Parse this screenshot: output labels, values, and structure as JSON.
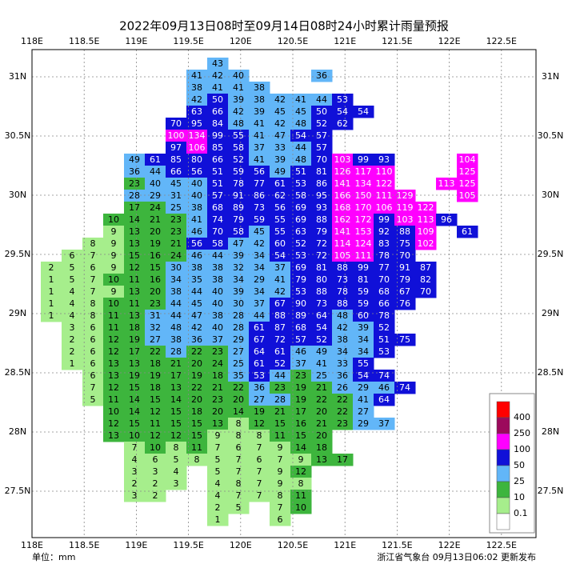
{
  "map": {
    "title": "2022年09月13日08时至09月14日08时24小时累计雨量预报",
    "unit_label": "单位：mm",
    "issuer": "浙江省气象台 09月13日06:02 更新发布",
    "lon_ticks": [
      {
        "value": 118,
        "label": "118E"
      },
      {
        "value": 118.5,
        "label": "118.5E"
      },
      {
        "value": 119,
        "label": "119E"
      },
      {
        "value": 119.5,
        "label": "119.5E"
      },
      {
        "value": 120,
        "label": "120E"
      },
      {
        "value": 120.5,
        "label": "120.5E"
      },
      {
        "value": 121,
        "label": "121E"
      },
      {
        "value": 121.5,
        "label": "121.5E"
      },
      {
        "value": 122,
        "label": "122E"
      },
      {
        "value": 122.5,
        "label": "122.5E"
      }
    ],
    "lat_ticks": [
      {
        "value": 31,
        "label": "31N"
      },
      {
        "value": 30.5,
        "label": "30.5N"
      },
      {
        "value": 30,
        "label": "30N"
      },
      {
        "value": 29.5,
        "label": "29.5N"
      },
      {
        "value": 29,
        "label": "29N"
      },
      {
        "value": 28.5,
        "label": "28.5N"
      },
      {
        "value": 28,
        "label": "28N"
      },
      {
        "value": 27.5,
        "label": "27.5N"
      }
    ],
    "legend": [
      {
        "value": 400,
        "color": "#ff0000"
      },
      {
        "value": 250,
        "color": "#9c0a5c"
      },
      {
        "value": 100,
        "color": "#ff00ff"
      },
      {
        "value": 50,
        "color": "#1010d8"
      },
      {
        "value": 25,
        "color": "#62b6f8"
      },
      {
        "value": 10,
        "color": "#3db53d"
      },
      {
        "value": 0.1,
        "color": "#a6ee8c"
      }
    ],
    "grid": [
      [
        null,
        null,
        null,
        null,
        null,
        null,
        null,
        null,
        43,
        null,
        null,
        null,
        null,
        null,
        null,
        null,
        null,
        null,
        null,
        null,
        null
      ],
      [
        null,
        null,
        null,
        null,
        null,
        null,
        null,
        41,
        42,
        40,
        null,
        null,
        null,
        36,
        null,
        null,
        null,
        null,
        null,
        null,
        null
      ],
      [
        null,
        null,
        null,
        null,
        null,
        null,
        null,
        38,
        41,
        41,
        38,
        null,
        null,
        null,
        null,
        null,
        null,
        null,
        null,
        null,
        null
      ],
      [
        null,
        null,
        null,
        null,
        null,
        null,
        null,
        42,
        50,
        39,
        38,
        42,
        41,
        44,
        53,
        null,
        null,
        null,
        null,
        null,
        null
      ],
      [
        null,
        null,
        null,
        null,
        null,
        null,
        null,
        63,
        66,
        42,
        39,
        45,
        45,
        50,
        54,
        54,
        null,
        null,
        null,
        null,
        null
      ],
      [
        null,
        null,
        null,
        null,
        null,
        null,
        70,
        95,
        84,
        48,
        41,
        42,
        48,
        52,
        62,
        null,
        null,
        null,
        null,
        null,
        null
      ],
      [
        null,
        null,
        null,
        null,
        null,
        null,
        100,
        134,
        99,
        55,
        41,
        47,
        54,
        57,
        null,
        null,
        null,
        null,
        null,
        null,
        null
      ],
      [
        null,
        null,
        null,
        null,
        null,
        null,
        97,
        106,
        85,
        58,
        37,
        33,
        44,
        57,
        null,
        null,
        null,
        null,
        null,
        null,
        null
      ],
      [
        null,
        null,
        null,
        null,
        49,
        61,
        85,
        80,
        66,
        52,
        41,
        39,
        48,
        70,
        103,
        99,
        93,
        null,
        null,
        null,
        104
      ],
      [
        null,
        null,
        null,
        null,
        36,
        44,
        66,
        56,
        51,
        59,
        56,
        49,
        51,
        81,
        126,
        117,
        110,
        null,
        null,
        null,
        125
      ],
      [
        null,
        null,
        null,
        null,
        23,
        40,
        45,
        40,
        51,
        78,
        77,
        61,
        53,
        86,
        141,
        134,
        122,
        null,
        null,
        113,
        125
      ],
      [
        null,
        null,
        null,
        null,
        28,
        29,
        31,
        40,
        57,
        91,
        86,
        62,
        58,
        95,
        166,
        150,
        111,
        129,
        null,
        null,
        105
      ],
      [
        null,
        null,
        null,
        null,
        17,
        24,
        25,
        38,
        68,
        89,
        73,
        56,
        69,
        93,
        168,
        170,
        106,
        119,
        122,
        null,
        null
      ],
      [
        null,
        null,
        null,
        10,
        14,
        21,
        23,
        41,
        74,
        79,
        59,
        55,
        69,
        88,
        162,
        172,
        99,
        103,
        113,
        96,
        null
      ],
      [
        null,
        null,
        null,
        9,
        13,
        20,
        23,
        46,
        70,
        58,
        45,
        55,
        63,
        79,
        141,
        153,
        92,
        88,
        109,
        null,
        61
      ],
      [
        null,
        null,
        8,
        9,
        13,
        19,
        21,
        56,
        58,
        47,
        42,
        60,
        52,
        72,
        114,
        124,
        83,
        75,
        102,
        null,
        null
      ],
      [
        null,
        6,
        7,
        9,
        15,
        16,
        24,
        46,
        44,
        39,
        34,
        54,
        53,
        72,
        105,
        111,
        78,
        70,
        null,
        null,
        null
      ],
      [
        2,
        5,
        6,
        9,
        12,
        15,
        30,
        38,
        38,
        32,
        34,
        37,
        69,
        81,
        88,
        99,
        77,
        91,
        87,
        null,
        null
      ],
      [
        1,
        5,
        7,
        10,
        11,
        16,
        34,
        35,
        38,
        34,
        29,
        41,
        79,
        80,
        73,
        81,
        70,
        79,
        82,
        null,
        null
      ],
      [
        1,
        4,
        7,
        9,
        13,
        20,
        38,
        44,
        40,
        39,
        34,
        42,
        53,
        88,
        78,
        59,
        68,
        67,
        70,
        null,
        null
      ],
      [
        1,
        4,
        8,
        10,
        11,
        23,
        44,
        45,
        40,
        30,
        37,
        67,
        90,
        73,
        88,
        59,
        66,
        76,
        null,
        null,
        null
      ],
      [
        1,
        4,
        8,
        11,
        13,
        31,
        44,
        47,
        38,
        28,
        44,
        88,
        89,
        64,
        48,
        60,
        78,
        null,
        null,
        null,
        null
      ],
      [
        null,
        3,
        6,
        11,
        18,
        32,
        48,
        42,
        40,
        28,
        61,
        87,
        68,
        54,
        42,
        39,
        52,
        null,
        null,
        null,
        null
      ],
      [
        null,
        2,
        6,
        12,
        19,
        27,
        38,
        36,
        37,
        29,
        67,
        72,
        57,
        52,
        38,
        34,
        51,
        75,
        null,
        null,
        null
      ],
      [
        null,
        2,
        6,
        12,
        17,
        22,
        28,
        22,
        23,
        27,
        64,
        61,
        46,
        49,
        34,
        34,
        53,
        null,
        null,
        null,
        null
      ],
      [
        null,
        1,
        6,
        13,
        13,
        18,
        21,
        20,
        24,
        25,
        61,
        52,
        37,
        41,
        33,
        55,
        null,
        null,
        null,
        null,
        null
      ],
      [
        null,
        null,
        6,
        13,
        19,
        19,
        17,
        19,
        18,
        35,
        53,
        44,
        23,
        25,
        36,
        54,
        74,
        null,
        null,
        null,
        null
      ],
      [
        null,
        null,
        7,
        12,
        15,
        18,
        13,
        22,
        21,
        22,
        36,
        23,
        19,
        21,
        26,
        29,
        46,
        74,
        null,
        null,
        null
      ],
      [
        null,
        null,
        5,
        11,
        14,
        15,
        14,
        20,
        23,
        20,
        27,
        28,
        19,
        22,
        22,
        41,
        64,
        null,
        null,
        null,
        null
      ],
      [
        null,
        null,
        null,
        10,
        14,
        12,
        15,
        18,
        20,
        14,
        19,
        21,
        17,
        20,
        22,
        27,
        null,
        null,
        null,
        null,
        null
      ],
      [
        null,
        null,
        null,
        12,
        15,
        11,
        15,
        15,
        13,
        8,
        12,
        15,
        16,
        21,
        23,
        29,
        37,
        null,
        null,
        null,
        null
      ],
      [
        null,
        null,
        null,
        13,
        10,
        12,
        12,
        15,
        9,
        8,
        8,
        11,
        15,
        20,
        null,
        null,
        null,
        null,
        null,
        null,
        null
      ],
      [
        null,
        null,
        null,
        null,
        7,
        10,
        8,
        11,
        7,
        6,
        7,
        9,
        14,
        18,
        null,
        null,
        null,
        null,
        null,
        null,
        null
      ],
      [
        null,
        null,
        null,
        null,
        4,
        6,
        5,
        8,
        5,
        7,
        6,
        7,
        9,
        13,
        17,
        null,
        null,
        null,
        null,
        null,
        null
      ],
      [
        null,
        null,
        null,
        null,
        3,
        3,
        4,
        null,
        5,
        7,
        7,
        9,
        12,
        null,
        null,
        null,
        null,
        null,
        null,
        null,
        null
      ],
      [
        null,
        null,
        null,
        null,
        2,
        2,
        3,
        null,
        4,
        8,
        7,
        9,
        8,
        null,
        null,
        null,
        null,
        null,
        null,
        null,
        null
      ],
      [
        null,
        null,
        null,
        null,
        3,
        2,
        null,
        null,
        4,
        7,
        7,
        8,
        11,
        null,
        null,
        null,
        null,
        null,
        null,
        null,
        null
      ],
      [
        null,
        null,
        null,
        null,
        null,
        null,
        null,
        null,
        2,
        5,
        null,
        7,
        10,
        null,
        null,
        null,
        null,
        null,
        null,
        null,
        null
      ],
      [
        null,
        null,
        null,
        null,
        null,
        null,
        null,
        null,
        1,
        null,
        null,
        6,
        null,
        null,
        null,
        null,
        null,
        null,
        null,
        null,
        null
      ]
    ]
  }
}
